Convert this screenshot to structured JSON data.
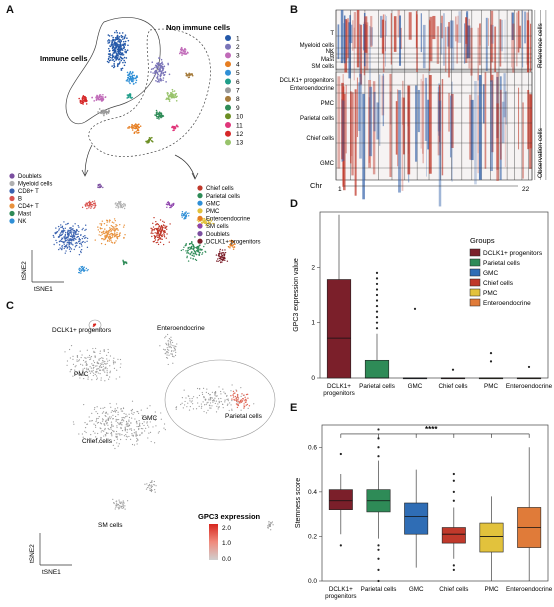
{
  "panel_letters": {
    "A": "A",
    "B": "B",
    "C": "C",
    "D": "D",
    "E": "E"
  },
  "panelA": {
    "label_immune": "Immune cells",
    "label_non_immune": "Non immune cells",
    "legend_clusters": [
      {
        "label": "1",
        "color": "#2458a8"
      },
      {
        "label": "2",
        "color": "#7a74b8"
      },
      {
        "label": "3",
        "color": "#c06ab8"
      },
      {
        "label": "4",
        "color": "#e67e22"
      },
      {
        "label": "5",
        "color": "#2f8fd6"
      },
      {
        "label": "6",
        "color": "#1f9e8a"
      },
      {
        "label": "7",
        "color": "#9a9a9a"
      },
      {
        "label": "8",
        "color": "#a57b3c"
      },
      {
        "label": "9",
        "color": "#2e8b57"
      },
      {
        "label": "10",
        "color": "#6b8e23"
      },
      {
        "label": "11",
        "color": "#e0367a"
      },
      {
        "label": "12",
        "color": "#d62728"
      },
      {
        "label": "13",
        "color": "#98c36b"
      }
    ],
    "immune_legend": [
      {
        "label": "Doublets",
        "color": "#7b4fa0"
      },
      {
        "label": "Myeloid cells",
        "color": "#b0b0b0"
      },
      {
        "label": "CD8+ T",
        "color": "#3a62b0"
      },
      {
        "label": "B",
        "color": "#d9534f"
      },
      {
        "label": "CD4+ T",
        "color": "#e8913c"
      },
      {
        "label": "Mast",
        "color": "#2e8b57"
      },
      {
        "label": "NK",
        "color": "#2f8fd6"
      }
    ],
    "nonimmune_legend": [
      {
        "label": "Chief cells",
        "color": "#c0392b"
      },
      {
        "label": "Parietal cells",
        "color": "#2e8b57"
      },
      {
        "label": "GMC",
        "color": "#2f8fd6"
      },
      {
        "label": "PMC",
        "color": "#e2c23c"
      },
      {
        "label": "Enteroendocrine",
        "color": "#e67e22"
      },
      {
        "label": "SM cells",
        "color": "#8e44ad"
      },
      {
        "label": "Doublets",
        "color": "#7b4fa0"
      },
      {
        "label": "DCLK1+ progenitors",
        "color": "#7b1f2a"
      }
    ],
    "tsne2": "tSNE2",
    "tsne1": "tSNE1"
  },
  "panelB": {
    "ref_rows": [
      "T",
      "Myeloid cells",
      "NK",
      "B",
      "Mast",
      "SM cells"
    ],
    "obs_rows": [
      "DCLK1+ progenitors",
      "Enteroendocrine",
      "PMC",
      "Parietal cells",
      "Chief cells",
      "GMC"
    ],
    "ref_side": "Reference cells",
    "obs_side": "Observation cells",
    "chr_label": "Chr",
    "chr_start": "1",
    "chr_end": "22"
  },
  "panelC": {
    "labels": {
      "dclk1": "DCLK1+ progenitors",
      "entero": "Enteroendocrine",
      "pmc": "PMC",
      "gmc": "GMC",
      "parietal": "Parietal cells",
      "chief": "Chief cells",
      "sm": "SM cells"
    },
    "colorbar_title": "GPC3 expression",
    "colorbar_ticks": [
      "2.0",
      "1.0",
      "0.0"
    ],
    "tsne2": "tSNE2",
    "tsne1": "tSNE1"
  },
  "chart_data": [
    {
      "type": "box",
      "panel": "D",
      "title": "",
      "xlabel": "",
      "ylabel": "GPC3 expression value",
      "ylim": [
        0,
        3
      ],
      "yticks": [
        "0",
        "1",
        "2"
      ],
      "categories": [
        "DCLK1+ progenitors",
        "Parietal cells",
        "GMC",
        "Chief cells",
        "PMC",
        "Enteroendocrine"
      ],
      "legend_title": "Groups",
      "series": [
        {
          "name": "DCLK1+ progenitors",
          "color": "#7b1f2a",
          "q1": 0.0,
          "median": 0.72,
          "q3": 1.78,
          "whisker_low": 0.0,
          "whisker_high": 2.95,
          "outliers": []
        },
        {
          "name": "Parietal cells",
          "color": "#2e8b57",
          "q1": 0.0,
          "median": 0.0,
          "q3": 0.32,
          "whisker_low": 0.0,
          "whisker_high": 0.8,
          "outliers": [
            0.9,
            1.0,
            1.1,
            1.2,
            1.3,
            1.4,
            1.5,
            1.6,
            1.7,
            1.8,
            1.9
          ]
        },
        {
          "name": "GMC",
          "color": "#2f6db5",
          "q1": 0.0,
          "median": 0.0,
          "q3": 0.0,
          "whisker_low": 0.0,
          "whisker_high": 0.0,
          "outliers": [
            1.25
          ]
        },
        {
          "name": "Chief cells",
          "color": "#c0392b",
          "q1": 0.0,
          "median": 0.0,
          "q3": 0.0,
          "whisker_low": 0.0,
          "whisker_high": 0.0,
          "outliers": [
            0.15
          ]
        },
        {
          "name": "PMC",
          "color": "#e2c23c",
          "q1": 0.0,
          "median": 0.0,
          "q3": 0.0,
          "whisker_low": 0.0,
          "whisker_high": 0.0,
          "outliers": [
            0.3,
            0.45
          ]
        },
        {
          "name": "Enteroendocrine",
          "color": "#e07b39",
          "q1": 0.0,
          "median": 0.0,
          "q3": 0.0,
          "whisker_low": 0.0,
          "whisker_high": 0.0,
          "outliers": [
            0.2
          ]
        }
      ]
    },
    {
      "type": "box",
      "panel": "E",
      "title": "",
      "xlabel": "",
      "ylabel": "Stemness score",
      "ylim": [
        0,
        0.7
      ],
      "yticks": [
        "0.0",
        "0.2",
        "0.4",
        "0.6"
      ],
      "categories": [
        "DCLK1+ progenitors",
        "Parietal cells",
        "GMC",
        "Chief cells",
        "PMC",
        "Enteroendocrine"
      ],
      "significance": "****",
      "series": [
        {
          "name": "DCLK1+ progenitors",
          "color": "#7b1f2a",
          "q1": 0.32,
          "median": 0.36,
          "q3": 0.41,
          "whisker_low": 0.21,
          "whisker_high": 0.48,
          "outliers": [
            0.16,
            0.57
          ]
        },
        {
          "name": "Parietal cells",
          "color": "#2e8b57",
          "q1": 0.31,
          "median": 0.36,
          "q3": 0.41,
          "whisker_low": 0.19,
          "whisker_high": 0.54,
          "outliers": [
            0.0,
            0.05,
            0.1,
            0.14,
            0.16,
            0.56,
            0.6,
            0.64,
            0.68
          ]
        },
        {
          "name": "GMC",
          "color": "#2f6db5",
          "q1": 0.21,
          "median": 0.29,
          "q3": 0.35,
          "whisker_low": 0.06,
          "whisker_high": 0.5,
          "outliers": []
        },
        {
          "name": "Chief cells",
          "color": "#c0392b",
          "q1": 0.17,
          "median": 0.21,
          "q3": 0.24,
          "whisker_low": 0.1,
          "whisker_high": 0.33,
          "outliers": [
            0.05,
            0.07,
            0.36,
            0.4,
            0.45,
            0.48
          ]
        },
        {
          "name": "PMC",
          "color": "#e2c23c",
          "q1": 0.13,
          "median": 0.2,
          "q3": 0.26,
          "whisker_low": 0.0,
          "whisker_high": 0.38,
          "outliers": []
        },
        {
          "name": "Enteroendocrine",
          "color": "#e07b39",
          "q1": 0.15,
          "median": 0.24,
          "q3": 0.33,
          "whisker_low": 0.0,
          "whisker_high": 0.6,
          "outliers": []
        }
      ]
    }
  ]
}
